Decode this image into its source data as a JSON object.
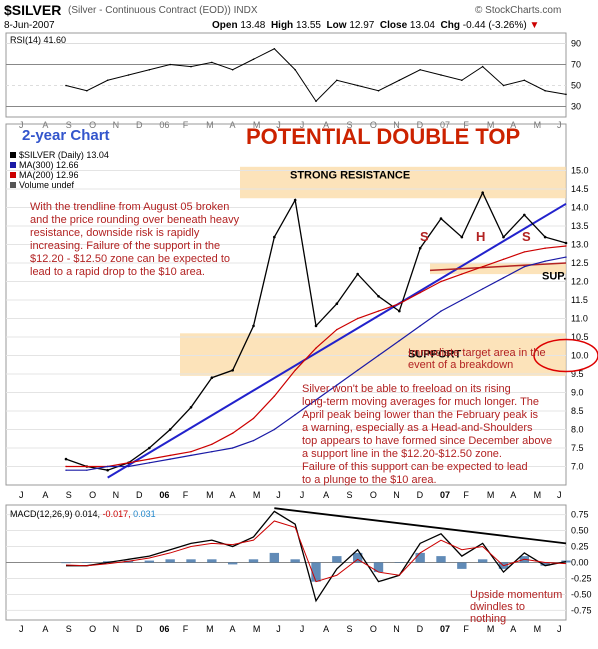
{
  "header": {
    "symbol": "$SILVER",
    "description": "(Silver - Continuous Contract (EOD))",
    "exchange": "INDX",
    "credit": "© StockCharts.com",
    "date": "8-Jun-2007",
    "open_label": "Open",
    "open": "13.48",
    "high_label": "High",
    "high": "13.55",
    "low_label": "Low",
    "low": "12.97",
    "close_label": "Close",
    "close": "13.04",
    "chg_label": "Chg",
    "chg": "-0.44 (-3.26%)",
    "chg_arrow": "▼"
  },
  "rsi_panel": {
    "label": "RSI(14) 41.60",
    "ticks": [
      "90",
      "70",
      "50",
      "30"
    ]
  },
  "price_panel": {
    "title_left": "2-year Chart",
    "title_main": "POTENTIAL DOUBLE TOP",
    "legend": [
      {
        "text": "$SILVER (Daily) 13.04",
        "color": "#000000"
      },
      {
        "text": "MA(300) 12.66",
        "color": "#1a1aa6"
      },
      {
        "text": "MA(200) 12.96",
        "color": "#cc0000"
      },
      {
        "text": "Volume undef",
        "color": "#555555"
      }
    ],
    "band_resistance_label": "STRONG RESISTANCE",
    "band_support_label": "SUPPORT",
    "sup_label": "SUP.",
    "hs_labels": [
      "S",
      "H",
      "S"
    ],
    "note_left": "With the trendline from August 05 broken and the price rounding over beneath heavy resistance, downside risk is rapidly increasing. Failure of the support in the $12.20 - $12.50 zone can be expected to lead to a rapid drop to the $10 area.",
    "note_target": "Immediate target area in the event of a breakdown",
    "note_bottom": "Silver won't be able to freeload on its rising long-term moving averages for much longer. The April peak being lower than the February peak is a warning, especially as a Head-and-Shoulders top appears to have formed since December above a support line in the $12.20-$12.50 zone. Failure of this support can be expected to lead to a plunge to the $10 area.",
    "yticks": [
      "15.0",
      "14.5",
      "14.0",
      "13.5",
      "13.0",
      "12.5",
      "12.0",
      "11.5",
      "11.0",
      "10.5",
      "10.0",
      "9.5",
      "9.0",
      "8.5",
      "8.0",
      "7.5",
      "7.0"
    ]
  },
  "macd_panel": {
    "label_prefix": "MACD(12,26,9)",
    "v1": "0.014",
    "v2": "-0.017",
    "v3": "0.031",
    "ticks": [
      "0.75",
      "0.50",
      "0.25",
      "0.00",
      "-0.25",
      "-0.50",
      "-0.75"
    ],
    "note": "Upside momentum dwindles to nothing"
  },
  "x_axis": {
    "months": [
      "J",
      "A",
      "S",
      "O",
      "N",
      "D",
      "06",
      "F",
      "M",
      "A",
      "M",
      "J",
      "J",
      "A",
      "S",
      "O",
      "N",
      "D",
      "07",
      "F",
      "M",
      "A",
      "M",
      "J"
    ]
  },
  "chart_data": {
    "type": "line",
    "x": [
      "2005-06",
      "2005-07",
      "2005-08",
      "2005-09",
      "2005-10",
      "2005-11",
      "2005-12",
      "2006-01",
      "2006-02",
      "2006-03",
      "2006-04",
      "2006-05",
      "2006-06",
      "2006-07",
      "2006-08",
      "2006-09",
      "2006-10",
      "2006-11",
      "2006-12",
      "2007-01",
      "2007-02",
      "2007-03",
      "2007-04",
      "2007-05",
      "2007-06"
    ],
    "series": [
      {
        "name": "$SILVER",
        "values": [
          7.2,
          7.0,
          6.9,
          7.1,
          7.5,
          8.0,
          8.6,
          9.4,
          9.6,
          10.8,
          13.2,
          14.2,
          10.8,
          11.4,
          12.2,
          11.6,
          11.2,
          12.9,
          13.7,
          13.2,
          14.4,
          13.2,
          13.8,
          13.2,
          13.04
        ]
      },
      {
        "name": "MA(200)",
        "values": [
          7.0,
          7.0,
          7.0,
          7.1,
          7.2,
          7.3,
          7.4,
          7.6,
          7.9,
          8.3,
          8.9,
          9.6,
          10.2,
          10.7,
          11.0,
          11.2,
          11.4,
          11.7,
          12.0,
          12.2,
          12.4,
          12.6,
          12.8,
          12.9,
          12.96
        ]
      },
      {
        "name": "MA(300)",
        "values": [
          6.9,
          6.9,
          7.0,
          7.0,
          7.1,
          7.2,
          7.3,
          7.4,
          7.5,
          7.7,
          8.0,
          8.4,
          8.8,
          9.2,
          9.6,
          10.0,
          10.4,
          10.8,
          11.2,
          11.5,
          11.8,
          12.1,
          12.4,
          12.55,
          12.66
        ]
      }
    ],
    "ylim": [
      6.5,
      15.5
    ],
    "resistance_band": [
      14.25,
      15.1
    ],
    "support_band": [
      9.45,
      10.6
    ],
    "hs_support_zone": [
      12.2,
      12.5
    ],
    "rsi_values": [
      50,
      45,
      55,
      60,
      65,
      70,
      68,
      72,
      65,
      75,
      85,
      65,
      35,
      55,
      50,
      45,
      55,
      65,
      60,
      55,
      68,
      50,
      55,
      45,
      41.6
    ],
    "macd_values": [
      -0.05,
      -0.05,
      0.0,
      0.05,
      0.1,
      0.2,
      0.3,
      0.35,
      0.25,
      0.4,
      0.8,
      0.6,
      -0.6,
      -0.1,
      0.2,
      -0.3,
      -0.2,
      0.3,
      0.45,
      0.1,
      0.3,
      -0.15,
      0.15,
      -0.05,
      0.014
    ],
    "signal_values": [
      -0.04,
      -0.05,
      -0.02,
      0.02,
      0.07,
      0.15,
      0.25,
      0.3,
      0.28,
      0.35,
      0.65,
      0.55,
      -0.3,
      -0.2,
      0.05,
      -0.15,
      -0.2,
      0.15,
      0.35,
      0.2,
      0.25,
      -0.05,
      0.05,
      0.0,
      -0.017
    ]
  }
}
